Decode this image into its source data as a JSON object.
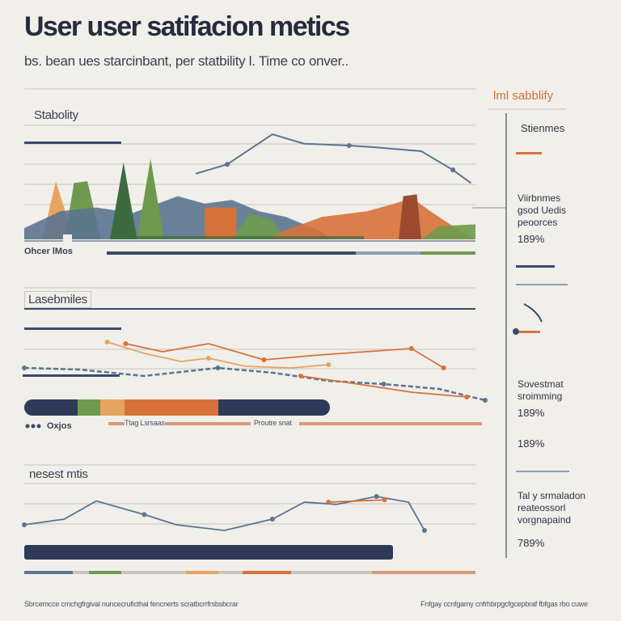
{
  "header": {
    "title": "User user satifacion metics",
    "subtitle": "bs. bean ues starcinbant, per statbility l. Time co onver.."
  },
  "colors": {
    "navy": "#3a4a6b",
    "slate": "#5b7490",
    "orange": "#d7713a",
    "green": "#6e9a4e",
    "dark_green": "#3d6b3f",
    "rust": "#9c4a2f",
    "light_orange": "#e7a460",
    "accent_orange": "#d7713a"
  },
  "panel1": {
    "label": "Stabolity",
    "legend_label": "Ohcer lMos"
  },
  "panel2": {
    "label": "Lasebmiles",
    "legend_label": "Oxjos",
    "caption_left": "Ttag Lsrsaas",
    "caption_right": "Proutre snat"
  },
  "panel3": {
    "label": "nesest mtis"
  },
  "sidebar": {
    "accent_title": "lml sabblify",
    "head": "Stienmes",
    "block1": [
      "Viirbnmes",
      "gsod Uedis",
      "peoorces"
    ],
    "value1": "189%",
    "block2": [
      "Sovestmat",
      "sroimming"
    ],
    "value2": "189%",
    "value3": "189%",
    "block3": [
      "Tal y srmaladon",
      "reateossorl",
      "vorgnapaind"
    ],
    "value4": "789%"
  },
  "footer": {
    "left": "Sbrcemcce cmchgfrgival nuncecruficthal fencnerts scratbcrrfrsbsbcrar",
    "right": "Fnfgay ccnfgamy cnfrhbrpgcfgcepbraf fbfgas rbo cuwe"
  },
  "chart_data": [
    {
      "type": "area",
      "name": "panel-1",
      "title": "Stabolity",
      "x_range": [
        0,
        100
      ],
      "y_range": [
        0,
        100
      ],
      "series": [
        {
          "color": "#e7a460",
          "kind": "peak",
          "values": [
            [
              4,
              0
            ],
            [
              7,
              62
            ],
            [
              11,
              0
            ]
          ]
        },
        {
          "color": "#6e9a4e",
          "kind": "peak",
          "values": [
            [
              9,
              0
            ],
            [
              11,
              60
            ],
            [
              14,
              62
            ],
            [
              17,
              0
            ]
          ]
        },
        {
          "color": "#5b7490",
          "kind": "hill",
          "values": [
            [
              0,
              12
            ],
            [
              8,
              30
            ],
            [
              16,
              34
            ],
            [
              24,
              28
            ],
            [
              34,
              46
            ],
            [
              40,
              38
            ],
            [
              46,
              42
            ],
            [
              52,
              30
            ],
            [
              58,
              24
            ],
            [
              66,
              8
            ],
            [
              68,
              0
            ]
          ]
        },
        {
          "color": "#3d6b3f",
          "kind": "peak",
          "values": [
            [
              19,
              0
            ],
            [
              22,
              82
            ],
            [
              25,
              0
            ]
          ]
        },
        {
          "color": "#6e9a4e",
          "kind": "peak",
          "values": [
            [
              25,
              0
            ],
            [
              28,
              86
            ],
            [
              31,
              0
            ]
          ]
        },
        {
          "color": "#d7713a",
          "kind": "band",
          "values": [
            [
              40,
              0
            ],
            [
              40,
              34
            ],
            [
              47,
              34
            ],
            [
              47,
              0
            ]
          ]
        },
        {
          "color": "#6e9a4e",
          "kind": "hill",
          "values": [
            [
              46,
              0
            ],
            [
              50,
              28
            ],
            [
              55,
              20
            ],
            [
              58,
              0
            ]
          ]
        },
        {
          "color": "#d7713a",
          "kind": "hill",
          "values": [
            [
              54,
              0
            ],
            [
              58,
              10
            ],
            [
              66,
              24
            ],
            [
              76,
              30
            ],
            [
              82,
              38
            ],
            [
              86,
              44
            ],
            [
              90,
              30
            ],
            [
              95,
              14
            ],
            [
              100,
              0
            ]
          ]
        },
        {
          "color": "#9c4a2f",
          "kind": "band",
          "values": [
            [
              83,
              0
            ],
            [
              84,
              46
            ],
            [
              87,
              48
            ],
            [
              88,
              0
            ]
          ]
        },
        {
          "color": "#6e9a4e",
          "kind": "hill",
          "values": [
            [
              88,
              0
            ],
            [
              92,
              14
            ],
            [
              100,
              16
            ],
            [
              100,
              0
            ]
          ]
        }
      ],
      "overlay_line": {
        "color": "#5b7490",
        "values": [
          [
            38,
            70
          ],
          [
            45,
            80
          ],
          [
            55,
            112
          ],
          [
            62,
            102
          ],
          [
            72,
            100
          ],
          [
            78,
            98
          ],
          [
            88,
            94
          ],
          [
            95,
            74
          ],
          [
            99,
            60
          ]
        ]
      }
    },
    {
      "type": "line",
      "name": "panel-2",
      "title": "Lasebmiles",
      "x_range": [
        0,
        100
      ],
      "y_range": [
        0,
        100
      ],
      "series": [
        {
          "color": "#d7713a",
          "values": [
            [
              22,
              70
            ],
            [
              30,
              60
            ],
            [
              40,
              70
            ],
            [
              52,
              50
            ],
            [
              64,
              56
            ],
            [
              74,
              60
            ],
            [
              84,
              64
            ],
            [
              91,
              40
            ]
          ]
        },
        {
          "color": "#e7a460",
          "values": [
            [
              18,
              72
            ],
            [
              26,
              58
            ],
            [
              34,
              48
            ],
            [
              40,
              52
            ],
            [
              48,
              42
            ],
            [
              58,
              40
            ],
            [
              66,
              44
            ]
          ]
        },
        {
          "color": "#5b7490",
          "values": [
            [
              0,
              40
            ],
            [
              12,
              38
            ],
            [
              26,
              30
            ],
            [
              42,
              40
            ],
            [
              54,
              34
            ],
            [
              66,
              24
            ],
            [
              78,
              20
            ],
            [
              90,
              14
            ],
            [
              100,
              0
            ]
          ]
        },
        {
          "color": "#d7713a",
          "values": [
            [
              60,
              30
            ],
            [
              70,
              22
            ],
            [
              84,
              10
            ],
            [
              96,
              4
            ]
          ]
        }
      ]
    },
    {
      "type": "line",
      "name": "panel-3",
      "title": "nesest mtis",
      "x_range": [
        0,
        100
      ],
      "y_range": [
        0,
        100
      ],
      "series": [
        {
          "color": "#5b7490",
          "values": [
            [
              0,
              30
            ],
            [
              10,
              40
            ],
            [
              18,
              72
            ],
            [
              30,
              48
            ],
            [
              38,
              30
            ],
            [
              50,
              20
            ],
            [
              62,
              40
            ],
            [
              70,
              70
            ],
            [
              78,
              66
            ],
            [
              88,
              80
            ],
            [
              96,
              70
            ],
            [
              100,
              20
            ]
          ]
        },
        {
          "color": "#d7713a",
          "values": [
            [
              76,
              70
            ],
            [
              90,
              74
            ]
          ]
        }
      ]
    }
  ]
}
